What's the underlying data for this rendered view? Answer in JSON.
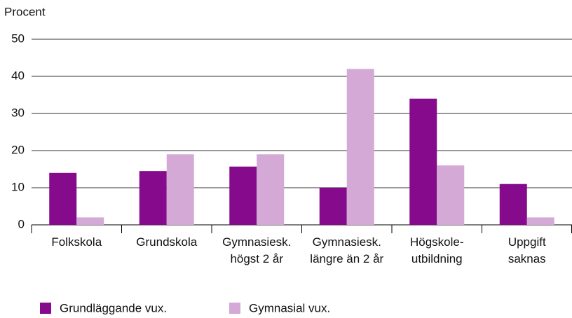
{
  "chart_data": {
    "type": "bar",
    "y_label": "Procent",
    "categories": [
      [
        "Folkskola"
      ],
      [
        "Grundskola"
      ],
      [
        "Gymnasiesk.",
        "högst 2 år"
      ],
      [
        "Gymnasiesk.",
        "längre än 2 år"
      ],
      [
        "Högskole-",
        "utbildning"
      ],
      [
        "Uppgift",
        "saknas"
      ]
    ],
    "series": [
      {
        "name": "Grundläggande vux.",
        "color": "#850a8c",
        "values": [
          14,
          14.5,
          15.7,
          10,
          34,
          11
        ]
      },
      {
        "name": "Gymnasial vux.",
        "color": "#d4a9d6",
        "values": [
          2,
          19,
          19,
          42,
          16,
          2
        ]
      }
    ],
    "ylim": [
      0,
      50
    ],
    "yticks": [
      0,
      10,
      20,
      30,
      40,
      50
    ],
    "grid": true,
    "legend": "bottom"
  }
}
